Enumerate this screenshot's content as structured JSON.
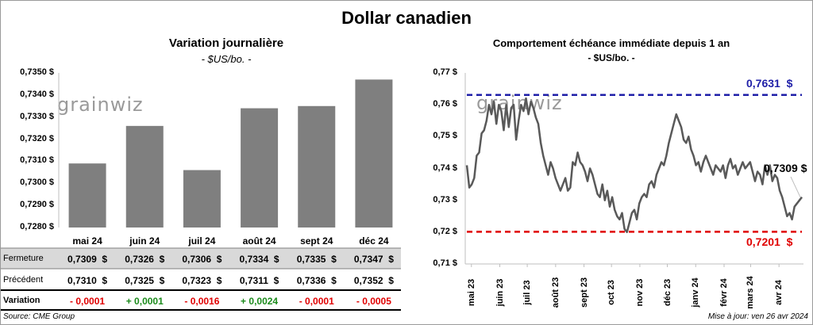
{
  "title": "Dollar canadien",
  "left_panel": {
    "title": "Variation  journalière",
    "unit": "- $US/bo. -"
  },
  "right_panel": {
    "title": "Comportement échéance immédiate depuis 1 an",
    "unit": "- $US/bo. -"
  },
  "logo_text": "grainwiz",
  "table": {
    "row_labels": [
      "Fermeture",
      "Précédent",
      "Variation"
    ],
    "fermeture": [
      "0,7309  $",
      "0,7326  $",
      "0,7306  $",
      "0,7334  $",
      "0,7335  $",
      "0,7347  $"
    ],
    "precedent": [
      "0,7310  $",
      "0,7325  $",
      "0,7323  $",
      "0,7311  $",
      "0,7336  $",
      "0,7352  $"
    ],
    "variation": [
      "- 0,0001",
      "+ 0,0001",
      "- 0,0016",
      "+ 0,0024",
      "- 0,0001",
      "- 0,0005"
    ],
    "variation_colors": [
      "#e00000",
      "#1a8a1a",
      "#e00000",
      "#1a8a1a",
      "#e00000",
      "#e00000"
    ]
  },
  "footer": {
    "source": "Source: CME Group",
    "updated": "Mise à jour: ven 26 avr 2024"
  },
  "chart_data": [
    {
      "type": "bar",
      "categories": [
        "mai 24",
        "juin 24",
        "juil 24",
        "août 24",
        "sept 24",
        "déc 24"
      ],
      "values": [
        0.7309,
        0.7326,
        0.7306,
        0.7334,
        0.7335,
        0.7347
      ],
      "ylim": [
        0.728,
        0.735
      ],
      "yticks": [
        "0,7280 $",
        "0,7290 $",
        "0,7300 $",
        "0,7310 $",
        "0,7320 $",
        "0,7330 $",
        "0,7340 $",
        "0,7350 $"
      ],
      "color": "#7f7f7f",
      "grid": false
    },
    {
      "type": "line",
      "title": "Comportement échéance immédiate depuis 1 an",
      "ylim": [
        0.71,
        0.77
      ],
      "yticks": [
        "0,71 $",
        "0,72 $",
        "0,73 $",
        "0,74 $",
        "0,75 $",
        "0,76 $",
        "0,77 $"
      ],
      "xticks": [
        "mai 23",
        "juin 23",
        "juil 23",
        "août 23",
        "sept 23",
        "oct 23",
        "nov 23",
        "déc 23",
        "janv 24",
        "févr 24",
        "mars 24",
        "avr 24"
      ],
      "x_start": "2023-04-26",
      "x_end": "2024-04-26",
      "series": [
        {
          "color": "#595959",
          "values": [
            0.741,
            0.734,
            0.735,
            0.737,
            0.744,
            0.745,
            0.751,
            0.752,
            0.755,
            0.76,
            0.757,
            0.761,
            0.754,
            0.76,
            0.758,
            0.752,
            0.76,
            0.753,
            0.759,
            0.76,
            0.749,
            0.755,
            0.76,
            0.758,
            0.762,
            0.757,
            0.761,
            0.759,
            0.756,
            0.754,
            0.748,
            0.744,
            0.741,
            0.738,
            0.742,
            0.74,
            0.737,
            0.735,
            0.733,
            0.735,
            0.737,
            0.733,
            0.734,
            0.742,
            0.741,
            0.745,
            0.742,
            0.741,
            0.739,
            0.736,
            0.74,
            0.738,
            0.735,
            0.732,
            0.731,
            0.735,
            0.73,
            0.733,
            0.728,
            0.731,
            0.727,
            0.725,
            0.724,
            0.726,
            0.721,
            0.72,
            0.723,
            0.726,
            0.727,
            0.724,
            0.729,
            0.731,
            0.732,
            0.731,
            0.735,
            0.736,
            0.734,
            0.738,
            0.74,
            0.742,
            0.741,
            0.744,
            0.748,
            0.751,
            0.754,
            0.757,
            0.755,
            0.753,
            0.749,
            0.748,
            0.75,
            0.746,
            0.744,
            0.741,
            0.742,
            0.739,
            0.742,
            0.744,
            0.742,
            0.74,
            0.738,
            0.741,
            0.74,
            0.739,
            0.741,
            0.737,
            0.741,
            0.743,
            0.74,
            0.741,
            0.738,
            0.74,
            0.742,
            0.74,
            0.741,
            0.742,
            0.739,
            0.736,
            0.739,
            0.738,
            0.735,
            0.741,
            0.738,
            0.741,
            0.736,
            0.738,
            0.737,
            0.733,
            0.731,
            0.728,
            0.725,
            0.726,
            0.724,
            0.728,
            0.729,
            0.73,
            0.731
          ]
        }
      ],
      "reference_lines": [
        {
          "value": 0.7631,
          "label": "0,7631  $",
          "color": "#1f1fa8"
        },
        {
          "value": 0.7201,
          "label": "0,7201  $",
          "color": "#e00000"
        }
      ],
      "last_label": "0,7309 $"
    }
  ]
}
